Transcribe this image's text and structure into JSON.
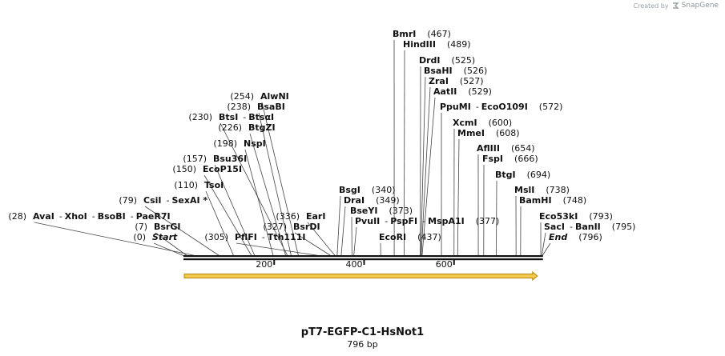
{
  "credit": {
    "prefix": "Created by",
    "brand": "SnapGene",
    "logo_icon": "snapgene-logo-icon"
  },
  "plasmid": {
    "name": "pT7-EGFP-C1-HsNot1",
    "length_label": "796 bp",
    "length": 796
  },
  "axis": {
    "ticks": [
      200,
      400,
      600
    ]
  },
  "feature": {
    "start": 0,
    "end": 796,
    "color": "#f2c94c",
    "border": "#b8860b"
  },
  "sites": [
    {
      "pos": 0,
      "pos_label": "(0)",
      "parts": [
        "Start"
      ],
      "italic": true
    },
    {
      "pos": 7,
      "pos_label": "(7)",
      "parts": [
        "BsrGI"
      ]
    },
    {
      "pos": 28,
      "pos_label": "(28)",
      "parts": [
        "AvaI",
        "XhoI",
        "BsoBI",
        "PaeR7I"
      ]
    },
    {
      "pos": 79,
      "pos_label": "(79)",
      "parts": [
        "CsiI",
        "SexAI *"
      ]
    },
    {
      "pos": 110,
      "pos_label": "(110)",
      "parts": [
        "TsoI"
      ]
    },
    {
      "pos": 150,
      "pos_label": "(150)",
      "parts": [
        "EcoP15I"
      ]
    },
    {
      "pos": 157,
      "pos_label": "(157)",
      "parts": [
        "Bsu36I"
      ]
    },
    {
      "pos": 198,
      "pos_label": "(198)",
      "parts": [
        "NspI"
      ]
    },
    {
      "pos": 226,
      "pos_label": "(226)",
      "parts": [
        "BtgZI"
      ]
    },
    {
      "pos": 230,
      "pos_label": "(230)",
      "parts": [
        "BtsI",
        "BtsαI"
      ]
    },
    {
      "pos": 238,
      "pos_label": "(238)",
      "parts": [
        "BsaBI"
      ]
    },
    {
      "pos": 254,
      "pos_label": "(254)",
      "parts": [
        "AlwNI"
      ]
    },
    {
      "pos": 305,
      "pos_label": "(305)",
      "parts": [
        "PflFI",
        "Tth111I"
      ]
    },
    {
      "pos": 327,
      "pos_label": "(327)",
      "parts": [
        "BsrDI"
      ]
    },
    {
      "pos": 336,
      "pos_label": "(336)",
      "parts": [
        "EarI"
      ]
    },
    {
      "pos": 340,
      "pos_label": "(340)",
      "parts": [
        "BsgI"
      ]
    },
    {
      "pos": 349,
      "pos_label": "(349)",
      "parts": [
        "DraI"
      ]
    },
    {
      "pos": 373,
      "pos_label": "(373)",
      "parts": [
        "BseYI"
      ]
    },
    {
      "pos": 377,
      "pos_label": "(377)",
      "parts": [
        "PvuII",
        "PspFI",
        "MspA1I"
      ]
    },
    {
      "pos": 437,
      "pos_label": "(437)",
      "parts": [
        "EcoRI"
      ]
    },
    {
      "pos": 467,
      "pos_label": "(467)",
      "parts": [
        "BmrI"
      ]
    },
    {
      "pos": 489,
      "pos_label": "(489)",
      "parts": [
        "HindIII"
      ]
    },
    {
      "pos": 525,
      "pos_label": "(525)",
      "parts": [
        "DrdI"
      ]
    },
    {
      "pos": 526,
      "pos_label": "(526)",
      "parts": [
        "BsaHI"
      ]
    },
    {
      "pos": 527,
      "pos_label": "(527)",
      "parts": [
        "ZraI"
      ]
    },
    {
      "pos": 529,
      "pos_label": "(529)",
      "parts": [
        "AatII"
      ]
    },
    {
      "pos": 572,
      "pos_label": "(572)",
      "parts": [
        "PpuMI",
        "EcoO109I"
      ]
    },
    {
      "pos": 600,
      "pos_label": "(600)",
      "parts": [
        "XcmI"
      ]
    },
    {
      "pos": 608,
      "pos_label": "(608)",
      "parts": [
        "MmeI"
      ]
    },
    {
      "pos": 654,
      "pos_label": "(654)",
      "parts": [
        "AflIII"
      ]
    },
    {
      "pos": 666,
      "pos_label": "(666)",
      "parts": [
        "FspI"
      ]
    },
    {
      "pos": 694,
      "pos_label": "(694)",
      "parts": [
        "BtgI"
      ]
    },
    {
      "pos": 738,
      "pos_label": "(738)",
      "parts": [
        "MslI"
      ]
    },
    {
      "pos": 748,
      "pos_label": "(748)",
      "parts": [
        "BamHI"
      ]
    },
    {
      "pos": 793,
      "pos_label": "(793)",
      "parts": [
        "Eco53kI"
      ]
    },
    {
      "pos": 795,
      "pos_label": "(795)",
      "parts": [
        "SacI",
        "BanII"
      ]
    },
    {
      "pos": 796,
      "pos_label": "(796)",
      "parts": [
        "End"
      ],
      "italic": true
    }
  ]
}
